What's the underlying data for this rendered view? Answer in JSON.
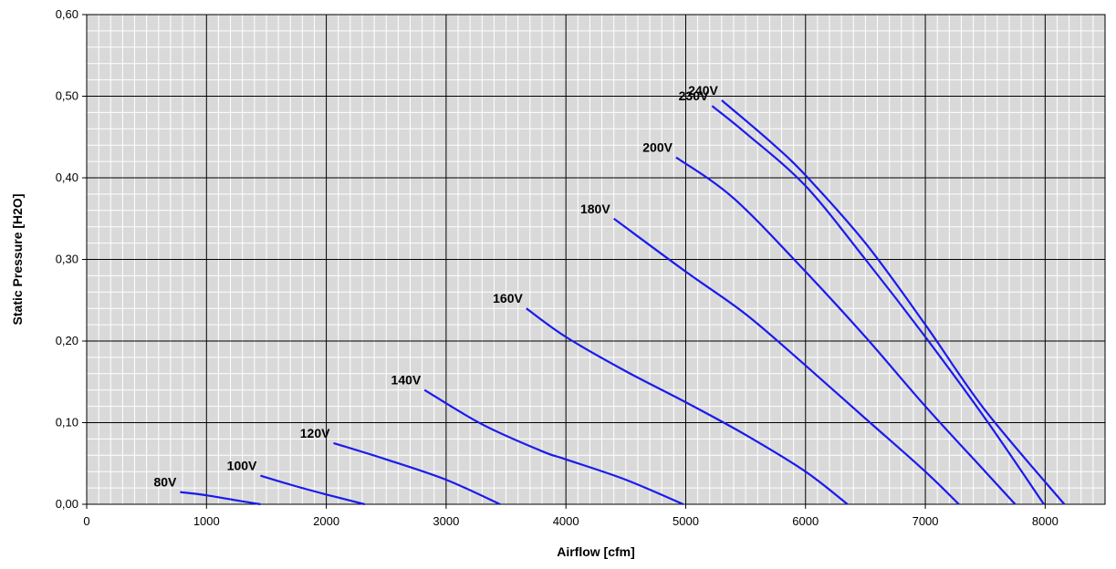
{
  "chart_data": {
    "type": "line",
    "title": "",
    "xlabel": "Airflow [cfm]",
    "ylabel": "Static Pressure  [H2O]",
    "xlim": [
      0,
      8500
    ],
    "ylim": [
      0,
      0.6
    ],
    "x_ticks": [
      0,
      1000,
      2000,
      3000,
      4000,
      5000,
      6000,
      7000,
      8000
    ],
    "x_tick_labels": [
      "0",
      "1000",
      "2000",
      "3000",
      "4000",
      "5000",
      "6000",
      "7000",
      "8000"
    ],
    "y_ticks": [
      0,
      0.1,
      0.2,
      0.3,
      0.4,
      0.5,
      0.6
    ],
    "y_tick_labels": [
      "0,00",
      "0,10",
      "0,20",
      "0,30",
      "0,40",
      "0,50",
      "0,60"
    ],
    "grid": true,
    "legend": "none",
    "colors": {
      "series": "#1a1aee",
      "plot_bg": "#d9d9d9",
      "major_grid": "#000000",
      "minor_grid": "#ffffff"
    },
    "series": [
      {
        "name": "80V",
        "x": [
          780,
          1000,
          1200,
          1450
        ],
        "y": [
          0.015,
          0.011,
          0.006,
          0.0
        ]
      },
      {
        "name": "100V",
        "x": [
          1450,
          1700,
          2000,
          2320
        ],
        "y": [
          0.035,
          0.024,
          0.012,
          0.0
        ]
      },
      {
        "name": "120V",
        "x": [
          2060,
          2500,
          3000,
          3450
        ],
        "y": [
          0.075,
          0.055,
          0.03,
          0.0
        ]
      },
      {
        "name": "140V",
        "x": [
          2820,
          3300,
          3800,
          4000,
          4500,
          4980
        ],
        "y": [
          0.14,
          0.098,
          0.065,
          0.055,
          0.03,
          0.0
        ]
      },
      {
        "name": "160V",
        "x": [
          3670,
          4000,
          4500,
          5000,
          5500,
          6000,
          6350
        ],
        "y": [
          0.24,
          0.205,
          0.163,
          0.125,
          0.085,
          0.04,
          0.0
        ]
      },
      {
        "name": "180V",
        "x": [
          4400,
          5000,
          5500,
          6000,
          6500,
          7000,
          7280
        ],
        "y": [
          0.35,
          0.285,
          0.233,
          0.17,
          0.105,
          0.04,
          0.0
        ]
      },
      {
        "name": "200V",
        "x": [
          4920,
          5400,
          6000,
          6500,
          7000,
          7500,
          7750
        ],
        "y": [
          0.425,
          0.375,
          0.285,
          0.205,
          0.12,
          0.04,
          0.0
        ]
      },
      {
        "name": "230V",
        "x": [
          5220,
          5500,
          6000,
          6500,
          7000,
          7500,
          7990
        ],
        "y": [
          0.488,
          0.455,
          0.39,
          0.3,
          0.205,
          0.105,
          0.0
        ]
      },
      {
        "name": "240V",
        "x": [
          5300,
          5700,
          6000,
          6500,
          7000,
          7500,
          8160
        ],
        "y": [
          0.495,
          0.445,
          0.403,
          0.32,
          0.22,
          0.115,
          0.0
        ]
      }
    ]
  }
}
